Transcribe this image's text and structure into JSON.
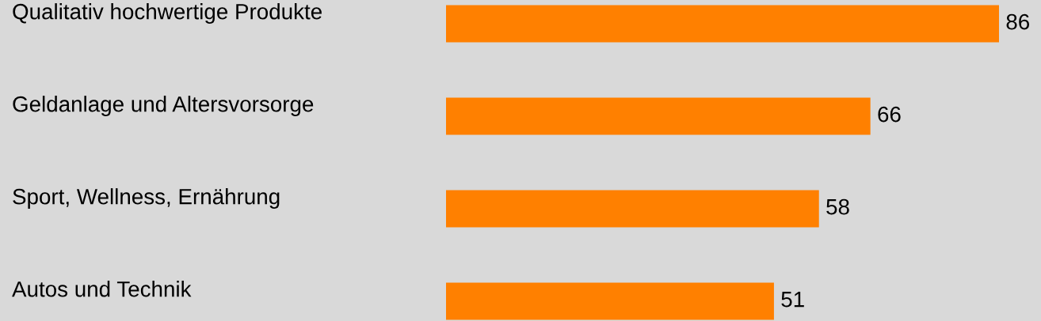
{
  "chart_data": {
    "type": "bar",
    "orientation": "horizontal",
    "categories": [
      "Qualitativ hochwertige Produkte",
      "Geldanlage und Altersvorsorge",
      "Sport, Wellness, Ernährung",
      "Autos und Technik"
    ],
    "values": [
      86,
      66,
      58,
      51
    ],
    "color": "#ff8000",
    "xlim": [
      0,
      86
    ],
    "data_labels": true,
    "tick_labels": "y"
  }
}
